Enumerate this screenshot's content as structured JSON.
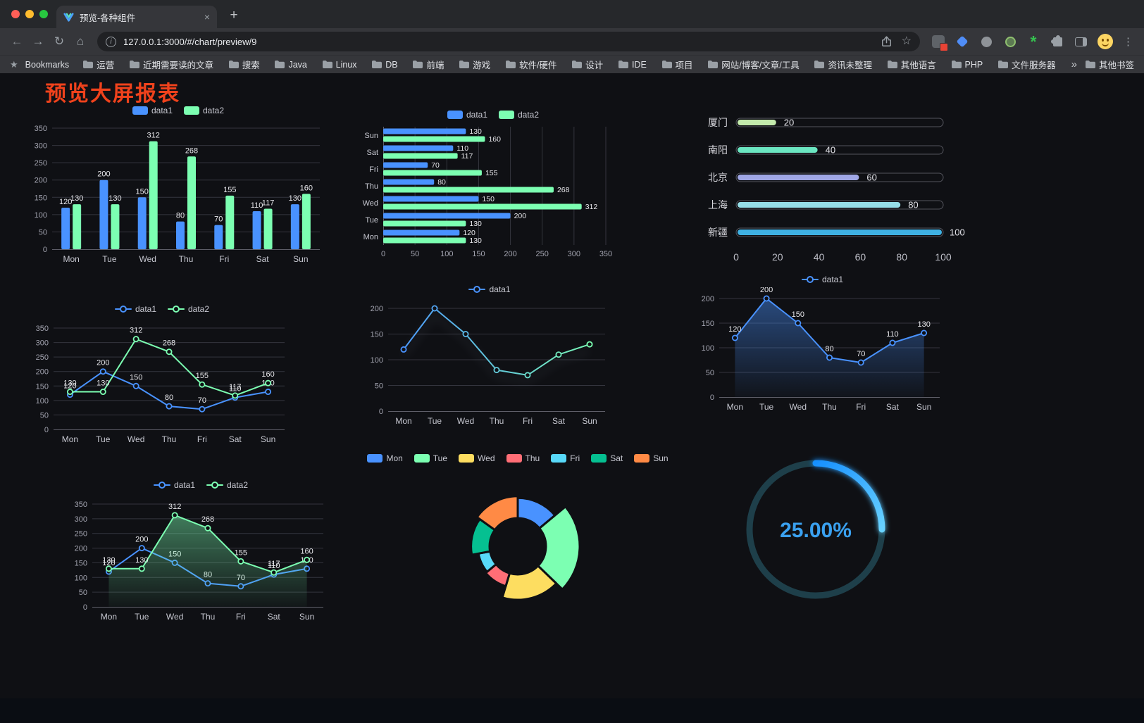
{
  "browser": {
    "tab": {
      "title": "预览-各种组件",
      "close_label": "×",
      "new_tab_label": "+"
    },
    "nav": {
      "back": "←",
      "forward": "→",
      "reload": "↻",
      "home": "⌂",
      "info": "i",
      "star": "☆",
      "menu": "⋮"
    },
    "url": "127.0.0.1:3000/#/chart/preview/9",
    "bookmarks": {
      "label": "Bookmarks",
      "folders": [
        "运营",
        "近期需要读的文章",
        "搜索",
        "Java",
        "Linux",
        "DB",
        "前端",
        "游戏",
        "软件/硬件",
        "设计",
        "IDE",
        "项目",
        "网站/博客/文章/工具",
        "资讯未整理",
        "其他语言",
        "PHP",
        "文件服务器"
      ],
      "overflow": "»",
      "other": "其他书签"
    }
  },
  "page": {
    "title": "预览大屏报表",
    "title_color": "#f0421c"
  },
  "chart_data": [
    {
      "type": "bar",
      "name": "grouped-vertical-bar",
      "legend": true,
      "labels": true,
      "categories": [
        "Mon",
        "Tue",
        "Wed",
        "Thu",
        "Fri",
        "Sat",
        "Sun"
      ],
      "series": [
        {
          "name": "data1",
          "color": "#4992ff",
          "values": [
            120,
            200,
            150,
            80,
            70,
            110,
            130
          ]
        },
        {
          "name": "data2",
          "color": "#7cffb2",
          "values": [
            130,
            130,
            312,
            268,
            155,
            117,
            160
          ]
        }
      ],
      "ylim": [
        0,
        350
      ],
      "ytick": 50
    },
    {
      "type": "hbar",
      "name": "grouped-horizontal-bar",
      "legend": true,
      "labels": true,
      "categories": [
        "Mon",
        "Tue",
        "Wed",
        "Thu",
        "Fri",
        "Sat",
        "Sun"
      ],
      "series": [
        {
          "name": "data1",
          "color": "#4992ff",
          "values": [
            120,
            200,
            150,
            80,
            70,
            110,
            130
          ]
        },
        {
          "name": "data2",
          "color": "#7cffb2",
          "values": [
            130,
            130,
            312,
            268,
            155,
            117,
            160
          ]
        }
      ],
      "xlim": [
        0,
        350
      ],
      "xtick": 50
    },
    {
      "type": "hprogress",
      "name": "city-progress-bars",
      "max": 100,
      "xticks": [
        0,
        20,
        40,
        60,
        80,
        100
      ],
      "rows": [
        {
          "label": "厦门",
          "value": 20,
          "color": "#c4ebad"
        },
        {
          "label": "南阳",
          "value": 40,
          "color": "#6be6c1"
        },
        {
          "label": "北京",
          "value": 60,
          "color": "#a0a7e6"
        },
        {
          "label": "上海",
          "value": 80,
          "color": "#96dee8"
        },
        {
          "label": "新疆",
          "value": 100,
          "color": "#3fb1e3"
        }
      ]
    },
    {
      "type": "line",
      "name": "two-line-chart",
      "legend": true,
      "labels": true,
      "categories": [
        "Mon",
        "Tue",
        "Wed",
        "Thu",
        "Fri",
        "Sat",
        "Sun"
      ],
      "series": [
        {
          "name": "data1",
          "color": "#4992ff",
          "values": [
            120,
            200,
            150,
            80,
            70,
            110,
            130
          ]
        },
        {
          "name": "data2",
          "color": "#7cffb2",
          "values": [
            130,
            130,
            312,
            268,
            155,
            117,
            160
          ]
        }
      ],
      "ylim": [
        0,
        350
      ],
      "ytick": 50
    },
    {
      "type": "line",
      "name": "gradient-line-chart",
      "legend": true,
      "labels": false,
      "categories": [
        "Mon",
        "Tue",
        "Wed",
        "Thu",
        "Fri",
        "Sat",
        "Sun"
      ],
      "series": [
        {
          "name": "data1",
          "gradient": [
            "#4992ff",
            "#7cffb2"
          ],
          "values": [
            120,
            200,
            150,
            80,
            70,
            110,
            130
          ],
          "shadow": true
        }
      ],
      "ylim": [
        0,
        200
      ],
      "ytick": 50
    },
    {
      "type": "line",
      "name": "area-line-chart",
      "legend": true,
      "labels": true,
      "categories": [
        "Mon",
        "Tue",
        "Wed",
        "Thu",
        "Fri",
        "Sat",
        "Sun"
      ],
      "series": [
        {
          "name": "data1",
          "color": "#4992ff",
          "values": [
            120,
            200,
            150,
            80,
            70,
            110,
            130
          ],
          "area": true
        }
      ],
      "ylim": [
        0,
        200
      ],
      "ytick": 50
    },
    {
      "type": "line",
      "name": "two-line-area-chart",
      "legend": true,
      "labels": true,
      "categories": [
        "Mon",
        "Tue",
        "Wed",
        "Thu",
        "Fri",
        "Sat",
        "Sun"
      ],
      "series": [
        {
          "name": "data1",
          "color": "#4992ff",
          "values": [
            120,
            200,
            150,
            80,
            70,
            110,
            130
          ]
        },
        {
          "name": "data2",
          "color": "#7cffb2",
          "values": [
            130,
            130,
            312,
            268,
            155,
            117,
            160
          ],
          "area": true
        }
      ],
      "ylim": [
        0,
        350
      ],
      "ytick": 50
    },
    {
      "type": "rose",
      "name": "rose-donut",
      "legend": true,
      "inner": 40,
      "outer": [
        56,
        88
      ],
      "cy": 114,
      "items": [
        {
          "name": "Mon",
          "value": 120,
          "color": "#4992ff"
        },
        {
          "name": "Tue",
          "value": 200,
          "color": "#7cffb2"
        },
        {
          "name": "Wed",
          "value": 150,
          "color": "#fddd60"
        },
        {
          "name": "Thu",
          "value": 80,
          "color": "#ff6e76"
        },
        {
          "name": "Fri",
          "value": 70,
          "color": "#58d9f9"
        },
        {
          "name": "Sat",
          "value": 110,
          "color": "#05c091"
        },
        {
          "name": "Sun",
          "value": 130,
          "color": "#ff8a45"
        }
      ]
    },
    {
      "type": "gauge",
      "name": "percent-gauge",
      "value": 25,
      "text": "25.00%",
      "color": "#3aa1f0",
      "track": "#1e3f4a",
      "bar": [
        "#1890ff",
        "#69d2ff"
      ]
    }
  ]
}
